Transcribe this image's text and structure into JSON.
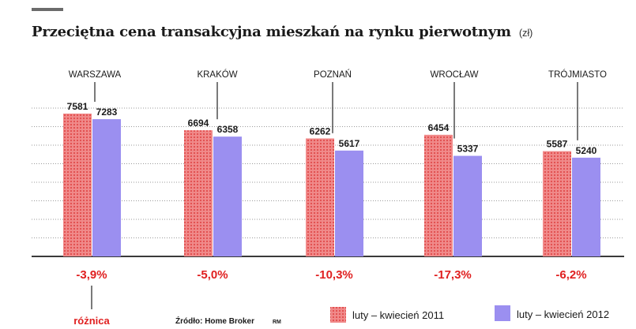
{
  "title": "Przeciętna cena transakcyjna mieszkań na rynku pierwotnym",
  "unit": "(zł)",
  "source": "Źródło: Home Broker",
  "author_initials": "RM",
  "difference_label": "różnica",
  "colors": {
    "series1": "#f08a8a",
    "series1_dot": "#e14b4b",
    "series2": "#9b8ff0",
    "change_text": "#e02020",
    "axis": "#3a3a3a",
    "grid": "#9a9a9a"
  },
  "chart_data": {
    "type": "bar",
    "categories": [
      "WARSZAWA",
      "KRAKÓW",
      "POZNAŃ",
      "WROCŁAW",
      "TRÓJMIASTO"
    ],
    "series": [
      {
        "name": "luty – kwiecień 2011",
        "values": [
          7581,
          6694,
          6262,
          6454,
          5587
        ]
      },
      {
        "name": "luty – kwiecień 2012",
        "values": [
          7283,
          6358,
          5617,
          5337,
          5240
        ]
      }
    ],
    "changes": [
      "-3,9%",
      "-5,0%",
      "-10,3%",
      "-17,3%",
      "-6,2%"
    ],
    "ylim": [
      0,
      8500
    ],
    "grid": true,
    "legend_position": "bottom-right"
  }
}
